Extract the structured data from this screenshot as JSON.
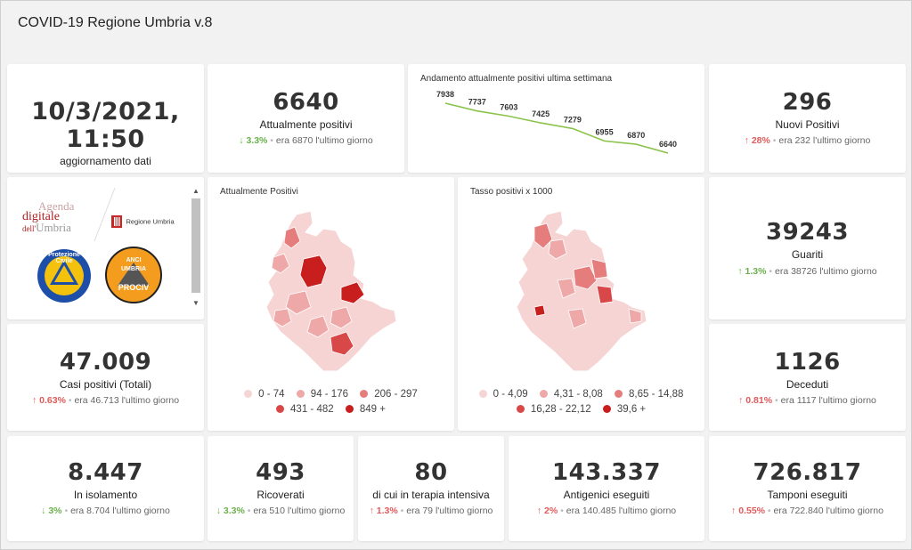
{
  "header": {
    "title": "COVID-19 Regione Umbria v.8"
  },
  "update": {
    "datetime": "10/3/2021, 11:50",
    "label": "aggiornamento dati"
  },
  "kpis": {
    "attualmente_positivi": {
      "value": "6640",
      "label": "Attualmente positivi",
      "arrow": "↓",
      "pct": "3.3%",
      "prev": "era 6870 l'ultimo giorno",
      "trend": "down"
    },
    "nuovi_positivi": {
      "value": "296",
      "label": "Nuovi Positivi",
      "arrow": "↑",
      "pct": "28%",
      "prev": "era 232 l'ultimo giorno",
      "trend": "up"
    },
    "guariti": {
      "value": "39243",
      "label": "Guariti",
      "arrow": "↑",
      "pct": "1.3%",
      "prev": "era 38726 l'ultimo giorno",
      "trend": "down"
    },
    "casi_totali": {
      "value": "47.009",
      "label": "Casi positivi (Totali)",
      "arrow": "↑",
      "pct": "0.63%",
      "prev": "era 46.713 l'ultimo giorno",
      "trend": "up"
    },
    "deceduti": {
      "value": "1126",
      "label": "Deceduti",
      "arrow": "↑",
      "pct": "0.81%",
      "prev": "era 1117 l'ultimo giorno",
      "trend": "up"
    },
    "isolamento": {
      "value": "8.447",
      "label": "In isolamento",
      "arrow": "↓",
      "pct": "3%",
      "prev": "era 8.704 l'ultimo giorno",
      "trend": "down"
    },
    "ricoverati": {
      "value": "493",
      "label": "Ricoverati",
      "arrow": "↓",
      "pct": "3.3%",
      "prev": "era 510 l'ultimo giorno",
      "trend": "down"
    },
    "terapia_intensiva": {
      "value": "80",
      "label": "di cui in terapia intensiva",
      "arrow": "↑",
      "pct": "1.3%",
      "prev": "era 79 l'ultimo giorno",
      "trend": "up"
    },
    "antigenici": {
      "value": "143.337",
      "label": "Antigenici eseguiti",
      "arrow": "↑",
      "pct": "2%",
      "prev": "era 140.485 l'ultimo giorno",
      "trend": "up"
    },
    "tamponi": {
      "value": "726.817",
      "label": "Tamponi eseguiti",
      "arrow": "↑",
      "pct": "0.55%",
      "prev": "era 722.840 l'ultimo giorno",
      "trend": "up"
    }
  },
  "logos": {
    "agenda_line1": "Agenda",
    "agenda_line2": "digitale",
    "agenda_line3_a": "dell'",
    "agenda_line3_b": "Umbria",
    "regione": "Regione Umbria",
    "protezione": "Protezione Civile",
    "anci_top": "ANCI",
    "anci_mid": "UMBRIA",
    "anci_bottom": "PROCIV"
  },
  "colors": {
    "trend_line": "#8bc34a",
    "up": "#e05a5a",
    "down": "#6ab04c"
  },
  "chart_data": {
    "type": "line",
    "title": "Andamento attualmente positivi ultima settimana",
    "x": [
      1,
      2,
      3,
      4,
      5,
      6,
      7,
      8
    ],
    "values": [
      7938,
      7737,
      7603,
      7425,
      7279,
      6955,
      6870,
      6640
    ],
    "labels": [
      "7938",
      "7737",
      "7603",
      "7425",
      "7279",
      "6955",
      "6870",
      "6640"
    ],
    "ylim": [
      6640,
      7938
    ]
  },
  "maps": {
    "positivi": {
      "title": "Attualmente Positivi",
      "legend": [
        {
          "label": "0 - 74",
          "color": "#f7d4d4"
        },
        {
          "label": "94 - 176",
          "color": "#efa8a8"
        },
        {
          "label": "206 - 297",
          "color": "#e67d7d"
        },
        {
          "label": "431 - 482",
          "color": "#d94848"
        },
        {
          "label": "849 +",
          "color": "#c81e1e"
        }
      ]
    },
    "tasso": {
      "title": "Tasso positivi x 1000",
      "legend": [
        {
          "label": "0 - 4,09",
          "color": "#f7d4d4"
        },
        {
          "label": "4,31 - 8,08",
          "color": "#efa8a8"
        },
        {
          "label": "8,65 - 14,88",
          "color": "#e67d7d"
        },
        {
          "label": "16,28 - 22,12",
          "color": "#d94848"
        },
        {
          "label": "39,6 +",
          "color": "#c81e1e"
        }
      ]
    }
  }
}
